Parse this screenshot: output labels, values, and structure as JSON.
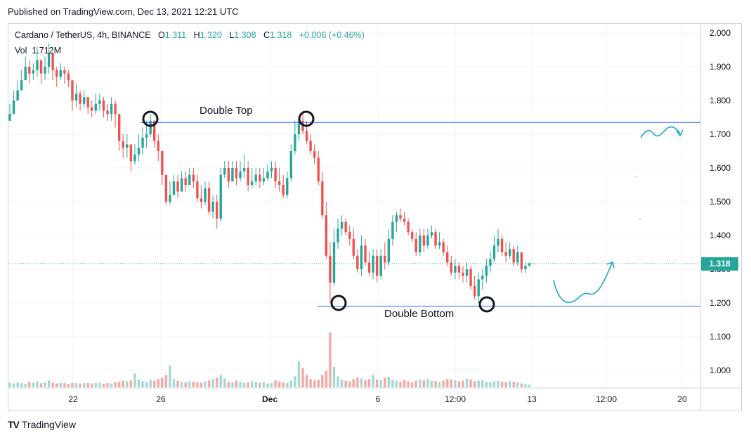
{
  "header": {
    "published": "Published on TradingView.com, Dec 13, 2021 12:21 UTC"
  },
  "legend": {
    "symbol": "Cardano / TetherUS, 4h, BINANCE",
    "o_label": "O",
    "o_value": "1.311",
    "h_label": "H",
    "h_value": "1.320",
    "l_label": "L",
    "l_value": "1.308",
    "c_label": "C",
    "c_value": "1.318",
    "change": "+0.006 (+0.46%)",
    "vol_label": "Vol",
    "vol_value": "1.712M"
  },
  "annotations": {
    "double_top": "Double Top",
    "double_bottom": "Double Bottom"
  },
  "footer": {
    "logo": "TV",
    "brand": "TradingView"
  },
  "colors": {
    "up": "#26a69a",
    "down": "#ef5350",
    "up_vol": "#a3d9d3",
    "down_vol": "#f4a8a6",
    "line": "#2962ff",
    "grid": "#f0f3fa",
    "drawing": "#22a8c7"
  },
  "chart_data": {
    "type": "candlestick",
    "title": "Cardano / TetherUS, 4h, BINANCE",
    "ylim": [
      0.95,
      2.02
    ],
    "y_ticks": [
      "2.000",
      "1.900",
      "1.800",
      "1.700",
      "1.600",
      "1.500",
      "1.400",
      "1.300",
      "1.200",
      "1.100",
      "1.000"
    ],
    "x_ticks": [
      "22",
      "26",
      "Dec",
      "6",
      "12:00",
      "13",
      "12:00",
      "20"
    ],
    "current_price": "1.318",
    "resistance_level": 1.735,
    "support_level": 1.19,
    "close": [
      1.76,
      1.8,
      1.83,
      1.86,
      1.9,
      1.88,
      1.89,
      1.92,
      1.88,
      1.9,
      1.94,
      1.89,
      1.87,
      1.89,
      1.88,
      1.86,
      1.8,
      1.82,
      1.79,
      1.81,
      1.78,
      1.77,
      1.79,
      1.8,
      1.77,
      1.76,
      1.79,
      1.76,
      1.68,
      1.66,
      1.67,
      1.62,
      1.64,
      1.66,
      1.69,
      1.7,
      1.74,
      1.68,
      1.65,
      1.58,
      1.5,
      1.52,
      1.56,
      1.53,
      1.57,
      1.55,
      1.58,
      1.56,
      1.51,
      1.5,
      1.54,
      1.47,
      1.5,
      1.45,
      1.58,
      1.6,
      1.56,
      1.6,
      1.57,
      1.59,
      1.6,
      1.55,
      1.56,
      1.58,
      1.56,
      1.57,
      1.59,
      1.6,
      1.56,
      1.55,
      1.52,
      1.57,
      1.65,
      1.7,
      1.74,
      1.71,
      1.68,
      1.65,
      1.63,
      1.56,
      1.46,
      1.34,
      1.26,
      1.38,
      1.42,
      1.44,
      1.41,
      1.39,
      1.34,
      1.3,
      1.37,
      1.32,
      1.29,
      1.34,
      1.28,
      1.34,
      1.32,
      1.39,
      1.44,
      1.46,
      1.45,
      1.44,
      1.41,
      1.39,
      1.35,
      1.4,
      1.37,
      1.4,
      1.41,
      1.37,
      1.38,
      1.35,
      1.32,
      1.29,
      1.31,
      1.29,
      1.28,
      1.3,
      1.25,
      1.22,
      1.27,
      1.28,
      1.31,
      1.33,
      1.37,
      1.39,
      1.35,
      1.34,
      1.36,
      1.32,
      1.35,
      1.3,
      1.31,
      1.318
    ],
    "high": [
      1.79,
      1.83,
      1.86,
      1.89,
      1.93,
      1.92,
      1.91,
      1.96,
      1.92,
      1.93,
      1.97,
      1.94,
      1.9,
      1.91,
      1.9,
      1.89,
      1.84,
      1.85,
      1.83,
      1.83,
      1.81,
      1.8,
      1.82,
      1.82,
      1.81,
      1.79,
      1.81,
      1.8,
      1.73,
      1.7,
      1.7,
      1.66,
      1.67,
      1.7,
      1.72,
      1.74,
      1.76,
      1.74,
      1.7,
      1.63,
      1.58,
      1.56,
      1.58,
      1.58,
      1.59,
      1.59,
      1.6,
      1.6,
      1.58,
      1.55,
      1.56,
      1.56,
      1.52,
      1.52,
      1.6,
      1.62,
      1.62,
      1.62,
      1.62,
      1.62,
      1.64,
      1.62,
      1.6,
      1.6,
      1.6,
      1.6,
      1.61,
      1.62,
      1.62,
      1.6,
      1.58,
      1.59,
      1.67,
      1.74,
      1.75,
      1.77,
      1.74,
      1.7,
      1.67,
      1.65,
      1.59,
      1.5,
      1.38,
      1.42,
      1.45,
      1.46,
      1.45,
      1.43,
      1.42,
      1.36,
      1.4,
      1.39,
      1.35,
      1.36,
      1.36,
      1.36,
      1.38,
      1.42,
      1.46,
      1.47,
      1.48,
      1.47,
      1.45,
      1.42,
      1.41,
      1.42,
      1.42,
      1.42,
      1.43,
      1.42,
      1.41,
      1.39,
      1.37,
      1.34,
      1.33,
      1.32,
      1.31,
      1.32,
      1.31,
      1.28,
      1.29,
      1.3,
      1.33,
      1.35,
      1.4,
      1.42,
      1.4,
      1.38,
      1.38,
      1.37,
      1.37,
      1.35,
      1.32,
      1.32
    ],
    "low": [
      1.74,
      1.77,
      1.8,
      1.84,
      1.87,
      1.85,
      1.86,
      1.87,
      1.85,
      1.86,
      1.88,
      1.86,
      1.84,
      1.86,
      1.85,
      1.84,
      1.77,
      1.78,
      1.77,
      1.78,
      1.76,
      1.75,
      1.76,
      1.77,
      1.75,
      1.74,
      1.74,
      1.72,
      1.65,
      1.63,
      1.63,
      1.59,
      1.61,
      1.62,
      1.64,
      1.66,
      1.69,
      1.66,
      1.62,
      1.55,
      1.49,
      1.49,
      1.52,
      1.51,
      1.53,
      1.53,
      1.55,
      1.54,
      1.5,
      1.48,
      1.49,
      1.46,
      1.45,
      1.42,
      1.44,
      1.57,
      1.54,
      1.56,
      1.55,
      1.56,
      1.57,
      1.53,
      1.54,
      1.55,
      1.54,
      1.55,
      1.56,
      1.57,
      1.54,
      1.53,
      1.51,
      1.51,
      1.56,
      1.64,
      1.68,
      1.7,
      1.67,
      1.64,
      1.61,
      1.55,
      1.45,
      1.33,
      1.2,
      1.25,
      1.36,
      1.4,
      1.4,
      1.37,
      1.33,
      1.29,
      1.28,
      1.31,
      1.28,
      1.27,
      1.26,
      1.27,
      1.3,
      1.31,
      1.37,
      1.41,
      1.44,
      1.43,
      1.4,
      1.38,
      1.34,
      1.34,
      1.35,
      1.36,
      1.39,
      1.36,
      1.36,
      1.34,
      1.31,
      1.28,
      1.27,
      1.27,
      1.26,
      1.26,
      1.24,
      1.21,
      1.2,
      1.24,
      1.26,
      1.29,
      1.32,
      1.35,
      1.34,
      1.32,
      1.33,
      1.31,
      1.31,
      1.29,
      1.29,
      1.308
    ],
    "volume": [
      16,
      14,
      18,
      15,
      13,
      20,
      17,
      22,
      15,
      18,
      25,
      17,
      14,
      16,
      15,
      13,
      16,
      15,
      14,
      15,
      16,
      14,
      15,
      17,
      13,
      15,
      14,
      18,
      20,
      24,
      22,
      25,
      50,
      28,
      22,
      20,
      26,
      24,
      30,
      35,
      45,
      80,
      30,
      24,
      20,
      18,
      22,
      20,
      18,
      17,
      22,
      25,
      30,
      35,
      45,
      32,
      20,
      18,
      24,
      20,
      16,
      18,
      22,
      20,
      16,
      18,
      14,
      15,
      25,
      20,
      18,
      16,
      24,
      40,
      95,
      70,
      45,
      30,
      25,
      28,
      45,
      60,
      200,
      75,
      40,
      28,
      24,
      22,
      30,
      35,
      32,
      26,
      30,
      45,
      28,
      26,
      35,
      38,
      28,
      24,
      20,
      26,
      22,
      18,
      24,
      28,
      26,
      30,
      24,
      22,
      20,
      24,
      30,
      28,
      26,
      22,
      24,
      32,
      28,
      22,
      24,
      26,
      20,
      18,
      22,
      24,
      20,
      18,
      22,
      20,
      18,
      14,
      12,
      10
    ]
  }
}
